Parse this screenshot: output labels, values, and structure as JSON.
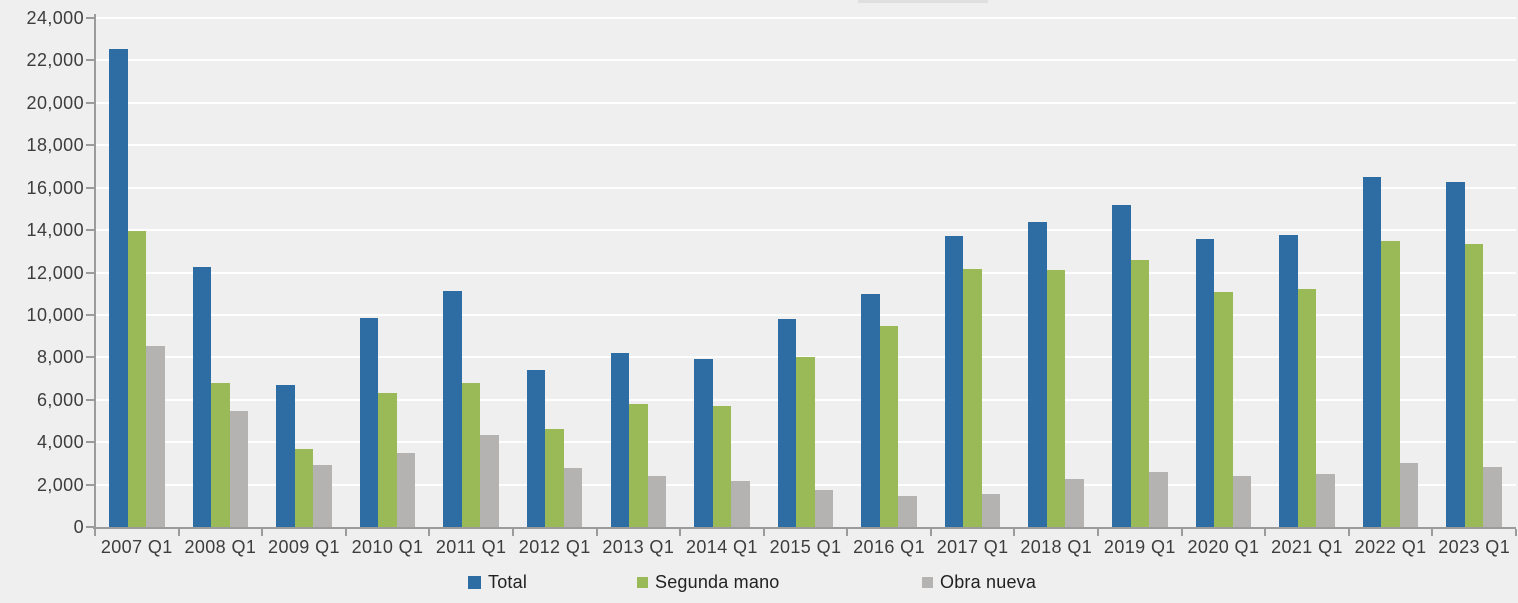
{
  "chart_data": {
    "type": "bar",
    "title": "",
    "categories": [
      "2007 Q1",
      "2008 Q1",
      "2009 Q1",
      "2010 Q1",
      "2011 Q1",
      "2012 Q1",
      "2013 Q1",
      "2014 Q1",
      "2015 Q1",
      "2016 Q1",
      "2017 Q1",
      "2018 Q1",
      "2019 Q1",
      "2020 Q1",
      "2021 Q1",
      "2022 Q1",
      "2023 Q1"
    ],
    "series": [
      {
        "name": "Total",
        "color": "#2e6da4",
        "values": [
          22550,
          12250,
          6700,
          9850,
          11150,
          7400,
          8200,
          7900,
          9800,
          11000,
          13700,
          14400,
          15200,
          13600,
          13750,
          16500,
          16250
        ]
      },
      {
        "name": "Segunda mano",
        "color": "#9ab957",
        "values": [
          13950,
          6800,
          3700,
          6300,
          6800,
          4600,
          5800,
          5700,
          8000,
          9500,
          12150,
          12100,
          12600,
          11100,
          11200,
          13500,
          13350
        ]
      },
      {
        "name": "Obra nueva",
        "color": "#b5b2b2",
        "values": [
          8550,
          5450,
          2900,
          3500,
          4350,
          2800,
          2400,
          2150,
          1750,
          1450,
          1550,
          2250,
          2600,
          2400,
          2500,
          3000,
          2850
        ]
      }
    ],
    "xlabel": "",
    "ylabel": "",
    "ylim": [
      0,
      24000
    ],
    "ytick_step": 2000,
    "ytick_labels": [
      "0",
      "2,000",
      "4,000",
      "6,000",
      "8,000",
      "10,000",
      "12,000",
      "14,000",
      "16,000",
      "18,000",
      "20,000",
      "22,000",
      "24,000"
    ],
    "grid": true,
    "legend_position": "bottom"
  },
  "colors": {
    "background": "#efeff0",
    "gridline": "#ffffff",
    "axis": "#9b9b9b",
    "axis_text": "#3d3d3d",
    "legend_text": "#222222"
  }
}
